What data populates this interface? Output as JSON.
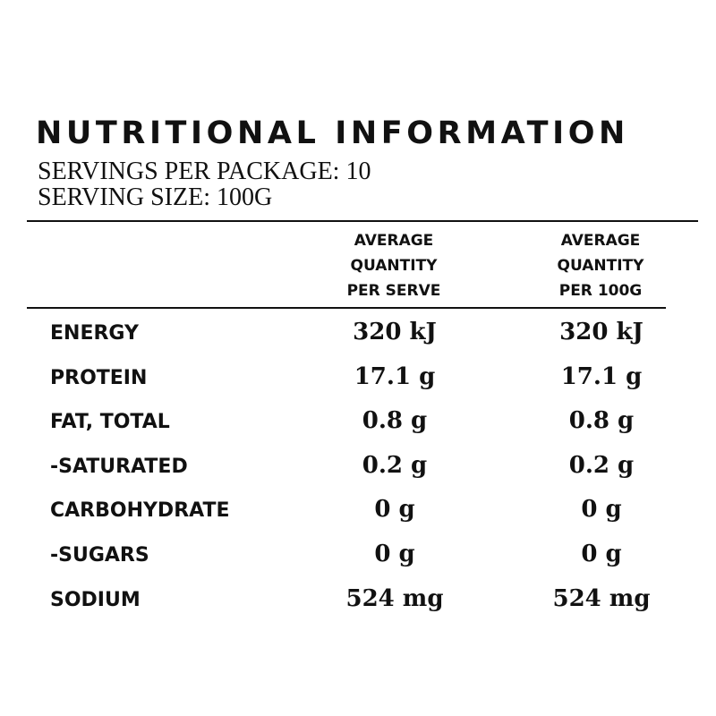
{
  "title": "NUTRITIONAL INFORMATION",
  "servings_per_package": "SERVINGS PER PACKAGE: 10",
  "serving_size": "SERVING SIZE: 100G",
  "columns": {
    "per_serve": [
      "AVERAGE",
      "QUANTITY",
      "PER SERVE"
    ],
    "per_100g": [
      "AVERAGE",
      "QUANTITY",
      "PER 100G"
    ]
  },
  "rows": [
    {
      "name": "ENERGY",
      "per_serve": "320 kJ",
      "per_100g": "320 kJ"
    },
    {
      "name": "PROTEIN",
      "per_serve": "17.1 g",
      "per_100g": "17.1 g"
    },
    {
      "name": "FAT, TOTAL",
      "per_serve": "0.8 g",
      "per_100g": "0.8 g"
    },
    {
      "name": "-SATURATED",
      "per_serve": "0.2 g",
      "per_100g": "0.2 g"
    },
    {
      "name": "CARBOHYDRATE",
      "per_serve": "0 g",
      "per_100g": "0 g"
    },
    {
      "name": "-SUGARS",
      "per_serve": "0 g",
      "per_100g": "0 g"
    },
    {
      "name": "SODIUM",
      "per_serve": "524 mg",
      "per_100g": "524 mg"
    }
  ]
}
